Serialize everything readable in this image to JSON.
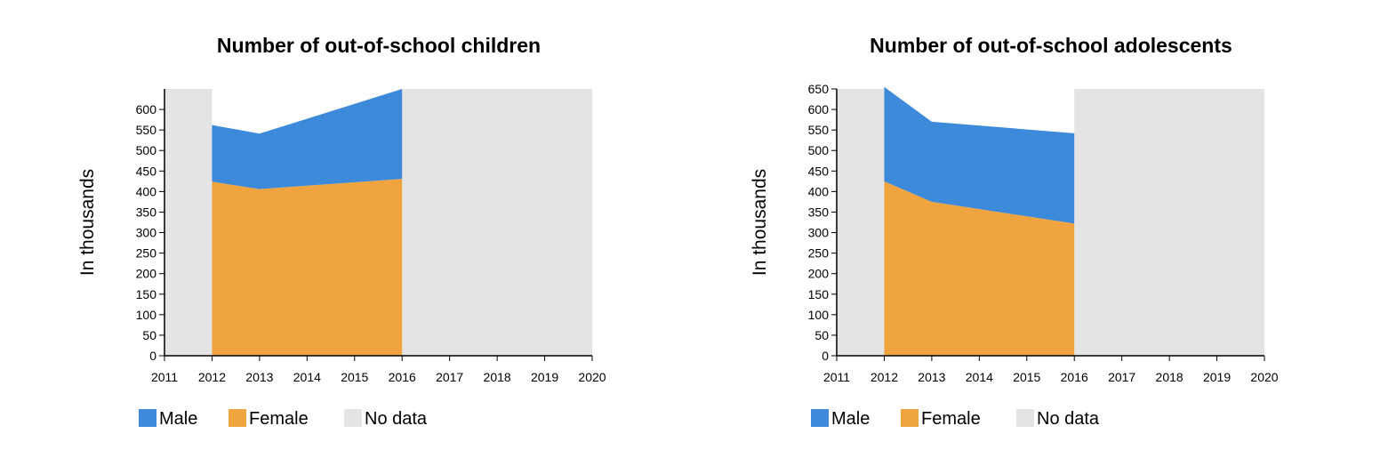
{
  "chart_data": [
    {
      "type": "area",
      "title": "Number of out-of-school children",
      "ylabel": "In thousands",
      "xlabel": "",
      "xlim": [
        2011,
        2020
      ],
      "ylim": [
        0,
        650
      ],
      "x_ticks": [
        "2011",
        "2012",
        "2013",
        "2014",
        "2015",
        "2016",
        "2017",
        "2018",
        "2019",
        "2020"
      ],
      "y_ticks": [
        "0",
        "50",
        "100",
        "150",
        "200",
        "250",
        "300",
        "350",
        "400",
        "450",
        "500",
        "550",
        "600"
      ],
      "stacked": true,
      "x": [
        2012,
        2013,
        2016
      ],
      "series": [
        {
          "name": "Female",
          "color": "#f0a43f",
          "values": [
            424,
            406,
            431
          ]
        },
        {
          "name": "Male",
          "color": "#3c8ad9",
          "values": [
            138,
            135,
            219
          ]
        }
      ],
      "no_data_ranges": [
        [
          2011,
          2012
        ],
        [
          2016,
          2020
        ]
      ],
      "no_data": {
        "name": "No data",
        "color": "#e4e4e4"
      },
      "legend": [
        {
          "label": "Male",
          "color": "#3c8ad9"
        },
        {
          "label": "Female",
          "color": "#f0a43f"
        },
        {
          "label": "No data",
          "color": "#e4e4e4"
        }
      ],
      "legend_position": "bottom-left",
      "grid": false
    },
    {
      "type": "area",
      "title": "Number of out-of-school adolescents",
      "ylabel": "In thousands",
      "xlabel": "",
      "xlim": [
        2011,
        2020
      ],
      "ylim": [
        0,
        650
      ],
      "x_ticks": [
        "2011",
        "2012",
        "2013",
        "2014",
        "2015",
        "2016",
        "2017",
        "2018",
        "2019",
        "2020"
      ],
      "y_ticks": [
        "0",
        "50",
        "100",
        "150",
        "200",
        "250",
        "300",
        "350",
        "400",
        "450",
        "500",
        "550",
        "600",
        "650"
      ],
      "stacked": true,
      "x": [
        2012,
        2013,
        2016
      ],
      "series": [
        {
          "name": "Female",
          "color": "#f0a43f",
          "values": [
            425,
            375,
            322
          ]
        },
        {
          "name": "Male",
          "color": "#3c8ad9",
          "values": [
            230,
            195,
            220
          ]
        }
      ],
      "no_data_ranges": [
        [
          2011,
          2012
        ],
        [
          2016,
          2020
        ]
      ],
      "no_data": {
        "name": "No data",
        "color": "#e4e4e4"
      },
      "legend": [
        {
          "label": "Male",
          "color": "#3c8ad9"
        },
        {
          "label": "Female",
          "color": "#f0a43f"
        },
        {
          "label": "No data",
          "color": "#e4e4e4"
        }
      ],
      "legend_position": "bottom-left",
      "grid": false
    }
  ]
}
